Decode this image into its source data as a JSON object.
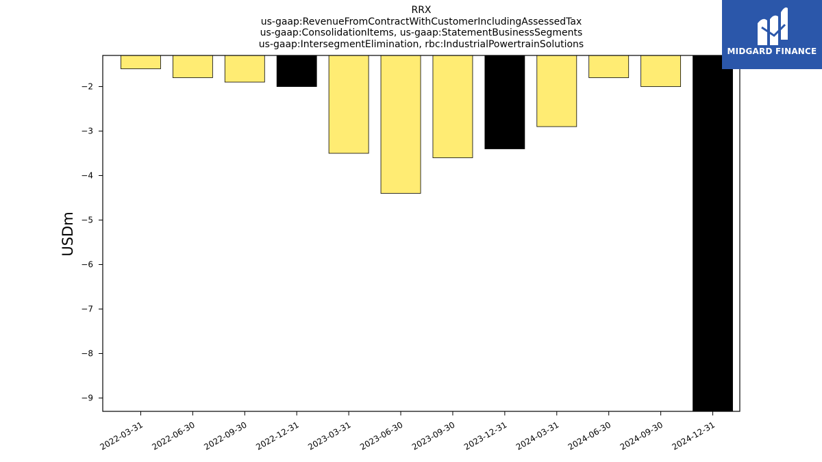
{
  "chart_data": {
    "type": "bar",
    "title_lines": [
      "RRX",
      "us-gaap:RevenueFromContractWithCustomerIncludingAssessedTax",
      "us-gaap:ConsolidationItems, us-gaap:StatementBusinessSegments",
      "us-gaap:IntersegmentElimination, rbc:IndustrialPowertrainSolutions"
    ],
    "xlabel": "",
    "ylabel": "USDm",
    "categories": [
      "2022-03-31",
      "2022-06-30",
      "2022-09-30",
      "2022-12-31",
      "2023-03-31",
      "2023-06-30",
      "2023-09-30",
      "2023-12-31",
      "2024-03-31",
      "2024-06-30",
      "2024-09-30",
      "2024-12-31"
    ],
    "values": [
      -1.6,
      -1.8,
      -1.9,
      -2.0,
      -3.5,
      -4.4,
      -3.6,
      -3.4,
      -2.9,
      -1.8,
      -2.0,
      -9.5
    ],
    "bar_colors": [
      "#ffec73",
      "#ffec73",
      "#ffec73",
      "#000000",
      "#ffec73",
      "#ffec73",
      "#ffec73",
      "#000000",
      "#ffec73",
      "#ffec73",
      "#ffec73",
      "#000000"
    ],
    "ylim": [
      -9.3,
      -1.3
    ],
    "yticks": [
      -2,
      -3,
      -4,
      -5,
      -6,
      -7,
      -8,
      -9
    ],
    "ytick_labels": [
      "−2",
      "−3",
      "−4",
      "−5",
      "−6",
      "−7",
      "−8",
      "−9"
    ],
    "grid": false,
    "legend": "none"
  },
  "logo": {
    "text": "MIDGARD FINANCE",
    "background": "#2b57aa",
    "foreground": "#ffffff"
  }
}
